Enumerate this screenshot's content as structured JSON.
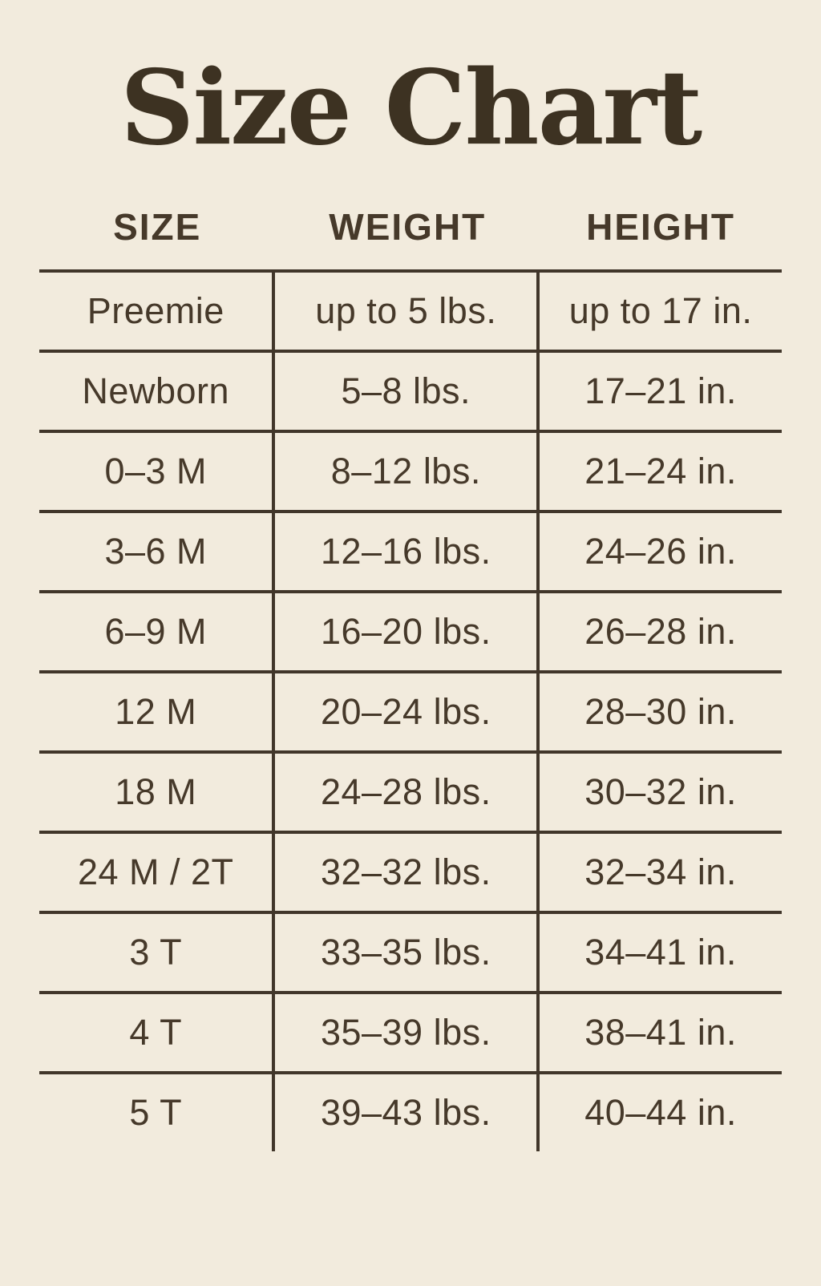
{
  "chart_data": {
    "type": "table",
    "title": "Size Chart",
    "columns": [
      "SIZE",
      "WEIGHT",
      "HEIGHT"
    ],
    "rows": [
      [
        "Preemie",
        "up to 5 lbs.",
        "up to 17 in."
      ],
      [
        "Newborn",
        "5–8 lbs.",
        "17–21 in."
      ],
      [
        "0–3 M",
        "8–12 lbs.",
        "21–24 in."
      ],
      [
        "3–6 M",
        "12–16 lbs.",
        "24–26 in."
      ],
      [
        "6–9 M",
        "16–20 lbs.",
        "26–28 in."
      ],
      [
        "12 M",
        "20–24 lbs.",
        "28–30 in."
      ],
      [
        "18 M",
        "24–28 lbs.",
        "30–32 in."
      ],
      [
        "24 M / 2T",
        "32–32 lbs.",
        "32–34 in."
      ],
      [
        "3 T",
        "33–35 lbs.",
        "34–41 in."
      ],
      [
        "4 T",
        "35–39 lbs.",
        "38–41 in."
      ],
      [
        "5 T",
        "39–43 lbs.",
        "40–44 in."
      ]
    ],
    "layout": {
      "grid": "horizontal rules between rows, vertical rules between columns, no outer border, no rule below last row"
    }
  },
  "colors": {
    "background": "#f2ebdd",
    "ink": "#46392a",
    "line": "#41362a",
    "title_ink": "#3d3222"
  }
}
